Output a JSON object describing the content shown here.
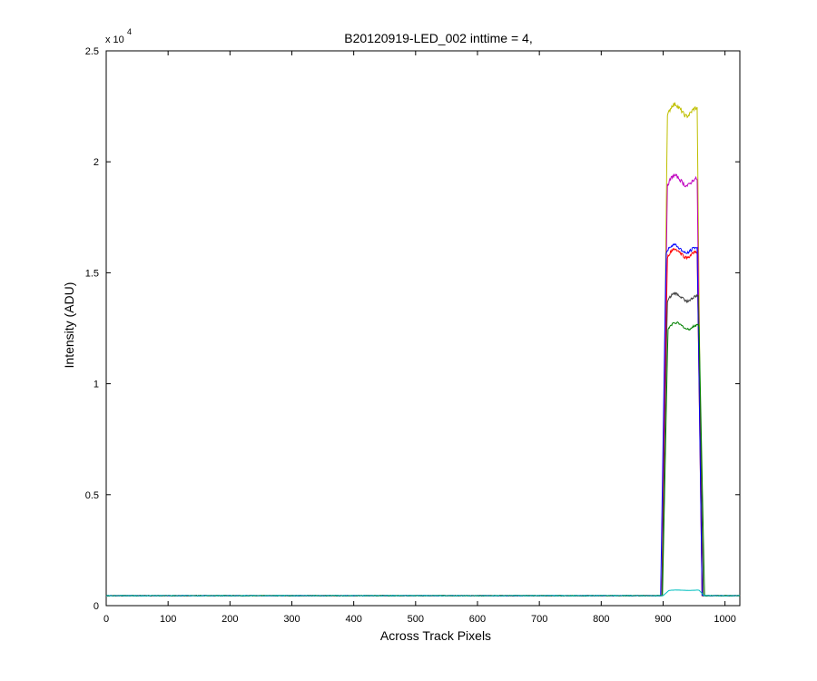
{
  "chart_data": {
    "type": "line",
    "title": "B20120919-LED_002 inttime = 4,",
    "xlabel": "Across Track Pixels",
    "ylabel": "Intensity (ADU)",
    "xlim": [
      0,
      1024
    ],
    "ylim": [
      0,
      25000
    ],
    "x_ticks": [
      0,
      100,
      200,
      300,
      400,
      500,
      600,
      700,
      800,
      900,
      1000
    ],
    "x_tick_labels": [
      "0",
      "100",
      "200",
      "300",
      "400",
      "500",
      "600",
      "700",
      "800",
      "900",
      "1000"
    ],
    "y_ticks": [
      0,
      5000,
      10000,
      15000,
      20000,
      25000
    ],
    "y_tick_labels": [
      "0",
      "0.5",
      "1",
      "1.5",
      "2",
      "2.5"
    ],
    "y_multiplier_label": "x 10",
    "y_multiplier_exponent": "4",
    "grid": false,
    "legend": "none",
    "baseline": 450,
    "series": [
      {
        "color": "#bfbf00",
        "peak": 22500,
        "rise_start": 898,
        "rise_end": 907,
        "fall_start": 955,
        "fall_end": 963
      },
      {
        "color": "#bf00bf",
        "peak": 19300,
        "rise_start": 898,
        "rise_end": 907,
        "fall_start": 955,
        "fall_end": 963
      },
      {
        "color": "#ff0000",
        "peak": 16000,
        "rise_start": 898,
        "rise_end": 907,
        "fall_start": 955,
        "fall_end": 963
      },
      {
        "color": "#0000ff",
        "peak": 16200,
        "rise_start": 896,
        "rise_end": 905,
        "fall_start": 955,
        "fall_end": 963
      },
      {
        "color": "#404040",
        "peak": 14000,
        "rise_start": 898,
        "rise_end": 907,
        "fall_start": 957,
        "fall_end": 965
      },
      {
        "color": "#008000",
        "peak": 12700,
        "rise_start": 899,
        "rise_end": 908,
        "fall_start": 958,
        "fall_end": 967
      },
      {
        "color": "#00bfbf",
        "peak": 700,
        "rise_start": 900,
        "rise_end": 910,
        "fall_start": 958,
        "fall_end": 966
      }
    ]
  }
}
